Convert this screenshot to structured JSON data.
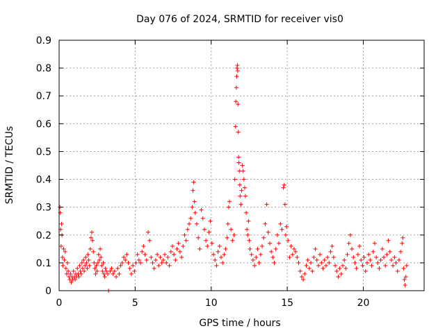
{
  "chart_data": {
    "type": "scatter",
    "title": "Day 076 of 2024, SRMTID for receiver vis0",
    "xlabel": "GPS time / hours",
    "ylabel": "SRMTID / TECUs",
    "xlim": [
      0,
      24
    ],
    "ylim": [
      0,
      0.9
    ],
    "x_ticks": [
      0,
      5,
      10,
      15,
      20
    ],
    "x_tick_labels": [
      "0",
      "5",
      "10",
      "15",
      "20"
    ],
    "y_ticks": [
      0,
      0.1,
      0.2,
      0.3,
      0.4,
      0.5,
      0.6,
      0.7,
      0.8,
      0.9
    ],
    "y_tick_labels": [
      "0",
      "0.1",
      "0.2",
      "0.3",
      "0.4",
      "0.5",
      "0.6",
      "0.7",
      "0.8",
      "0.9"
    ],
    "grid": true,
    "marker": "+",
    "series": [
      {
        "name": "SRMTID",
        "color": "#ff0000",
        "points": [
          [
            0.05,
            0.3
          ],
          [
            0.08,
            0.28
          ],
          [
            0.1,
            0.22
          ],
          [
            0.13,
            0.16
          ],
          [
            0.16,
            0.24
          ],
          [
            0.19,
            0.2
          ],
          [
            0.22,
            0.12
          ],
          [
            0.25,
            0.09
          ],
          [
            0.3,
            0.15
          ],
          [
            0.35,
            0.11
          ],
          [
            0.4,
            0.14
          ],
          [
            0.45,
            0.08
          ],
          [
            0.5,
            0.06
          ],
          [
            0.55,
            0.1
          ],
          [
            0.6,
            0.07
          ],
          [
            0.65,
            0.05
          ],
          [
            0.7,
            0.04
          ],
          [
            0.75,
            0.06
          ],
          [
            0.8,
            0.03
          ],
          [
            0.85,
            0.05
          ],
          [
            0.9,
            0.04
          ],
          [
            0.95,
            0.07
          ],
          [
            1.0,
            0.05
          ],
          [
            1.05,
            0.04
          ],
          [
            1.1,
            0.06
          ],
          [
            1.15,
            0.05
          ],
          [
            1.2,
            0.08
          ],
          [
            1.25,
            0.06
          ],
          [
            1.3,
            0.05
          ],
          [
            1.35,
            0.09
          ],
          [
            1.4,
            0.07
          ],
          [
            1.45,
            0.06
          ],
          [
            1.5,
            0.1
          ],
          [
            1.55,
            0.08
          ],
          [
            1.6,
            0.11
          ],
          [
            1.65,
            0.07
          ],
          [
            1.7,
            0.09
          ],
          [
            1.75,
            0.12
          ],
          [
            1.8,
            0.1
          ],
          [
            1.85,
            0.08
          ],
          [
            1.9,
            0.13
          ],
          [
            1.95,
            0.11
          ],
          [
            2.0,
            0.09
          ],
          [
            2.05,
            0.15
          ],
          [
            2.1,
            0.19
          ],
          [
            2.15,
            0.21
          ],
          [
            2.2,
            0.18
          ],
          [
            2.25,
            0.14
          ],
          [
            2.3,
            0.1
          ],
          [
            2.35,
            0.08
          ],
          [
            2.4,
            0.06
          ],
          [
            2.45,
            0.09
          ],
          [
            2.5,
            0.07
          ],
          [
            2.55,
            0.1
          ],
          [
            2.6,
            0.13
          ],
          [
            2.65,
            0.11
          ],
          [
            2.7,
            0.15
          ],
          [
            2.75,
            0.12
          ],
          [
            2.8,
            0.09
          ],
          [
            2.85,
            0.07
          ],
          [
            2.9,
            0.1
          ],
          [
            2.95,
            0.06
          ],
          [
            3.0,
            0.05
          ],
          [
            3.05,
            0.08
          ],
          [
            3.1,
            0.07
          ],
          [
            3.2,
            0.06
          ],
          [
            3.25,
            0.0
          ],
          [
            3.35,
            0.07
          ],
          [
            3.45,
            0.08
          ],
          [
            3.55,
            0.06
          ],
          [
            3.65,
            0.07
          ],
          [
            3.75,
            0.05
          ],
          [
            3.85,
            0.08
          ],
          [
            3.95,
            0.06
          ],
          [
            4.05,
            0.09
          ],
          [
            4.15,
            0.1
          ],
          [
            4.25,
            0.12
          ],
          [
            4.35,
            0.11
          ],
          [
            4.45,
            0.13
          ],
          [
            4.55,
            0.1
          ],
          [
            4.65,
            0.08
          ],
          [
            4.75,
            0.06
          ],
          [
            4.85,
            0.09
          ],
          [
            4.95,
            0.07
          ],
          [
            5.05,
            0.1
          ],
          [
            5.15,
            0.13
          ],
          [
            5.25,
            0.11
          ],
          [
            5.35,
            0.1
          ],
          [
            5.45,
            0.14
          ],
          [
            5.55,
            0.16
          ],
          [
            5.65,
            0.13
          ],
          [
            5.75,
            0.11
          ],
          [
            5.85,
            0.21
          ],
          [
            5.95,
            0.18
          ],
          [
            6.05,
            0.12
          ],
          [
            6.15,
            0.1
          ],
          [
            6.25,
            0.08
          ],
          [
            6.35,
            0.11
          ],
          [
            6.45,
            0.13
          ],
          [
            6.55,
            0.09
          ],
          [
            6.65,
            0.12
          ],
          [
            6.75,
            0.1
          ],
          [
            6.85,
            0.11
          ],
          [
            6.95,
            0.13
          ],
          [
            7.05,
            0.1
          ],
          [
            7.15,
            0.12
          ],
          [
            7.25,
            0.09
          ],
          [
            7.35,
            0.14
          ],
          [
            7.45,
            0.16
          ],
          [
            7.55,
            0.13
          ],
          [
            7.65,
            0.11
          ],
          [
            7.75,
            0.15
          ],
          [
            7.85,
            0.17
          ],
          [
            7.95,
            0.14
          ],
          [
            8.05,
            0.12
          ],
          [
            8.15,
            0.16
          ],
          [
            8.25,
            0.2
          ],
          [
            8.35,
            0.18
          ],
          [
            8.45,
            0.22
          ],
          [
            8.55,
            0.24
          ],
          [
            8.65,
            0.26
          ],
          [
            8.75,
            0.3
          ],
          [
            8.8,
            0.36
          ],
          [
            8.85,
            0.39
          ],
          [
            8.9,
            0.32
          ],
          [
            8.95,
            0.28
          ],
          [
            9.05,
            0.24
          ],
          [
            9.15,
            0.19
          ],
          [
            9.25,
            0.15
          ],
          [
            9.35,
            0.29
          ],
          [
            9.45,
            0.26
          ],
          [
            9.55,
            0.22
          ],
          [
            9.65,
            0.18
          ],
          [
            9.75,
            0.16
          ],
          [
            9.85,
            0.21
          ],
          [
            9.95,
            0.25
          ],
          [
            10.05,
            0.17
          ],
          [
            10.15,
            0.13
          ],
          [
            10.25,
            0.11
          ],
          [
            10.35,
            0.09
          ],
          [
            10.45,
            0.14
          ],
          [
            10.55,
            0.16
          ],
          [
            10.65,
            0.12
          ],
          [
            10.75,
            0.1
          ],
          [
            10.85,
            0.13
          ],
          [
            10.95,
            0.15
          ],
          [
            11.05,
            0.19
          ],
          [
            11.1,
            0.24
          ],
          [
            11.15,
            0.3
          ],
          [
            11.2,
            0.32
          ],
          [
            11.3,
            0.22
          ],
          [
            11.4,
            0.18
          ],
          [
            11.5,
            0.2
          ],
          [
            11.55,
            0.4
          ],
          [
            11.6,
            0.59
          ],
          [
            11.62,
            0.68
          ],
          [
            11.65,
            0.73
          ],
          [
            11.68,
            0.77
          ],
          [
            11.7,
            0.8
          ],
          [
            11.72,
            0.81
          ],
          [
            11.74,
            0.79
          ],
          [
            11.76,
            0.67
          ],
          [
            11.78,
            0.57
          ],
          [
            11.8,
            0.48
          ],
          [
            11.82,
            0.46
          ],
          [
            11.85,
            0.43
          ],
          [
            11.88,
            0.38
          ],
          [
            11.9,
            0.34
          ],
          [
            11.95,
            0.31
          ],
          [
            12.0,
            0.36
          ],
          [
            12.05,
            0.45
          ],
          [
            12.1,
            0.43
          ],
          [
            12.15,
            0.4
          ],
          [
            12.2,
            0.37
          ],
          [
            12.25,
            0.34
          ],
          [
            12.3,
            0.28
          ],
          [
            12.35,
            0.22
          ],
          [
            12.4,
            0.2
          ],
          [
            12.45,
            0.25
          ],
          [
            12.5,
            0.18
          ],
          [
            12.55,
            0.15
          ],
          [
            12.65,
            0.13
          ],
          [
            12.75,
            0.11
          ],
          [
            12.85,
            0.09
          ],
          [
            12.95,
            0.12
          ],
          [
            13.05,
            0.15
          ],
          [
            13.15,
            0.1
          ],
          [
            13.25,
            0.13
          ],
          [
            13.35,
            0.16
          ],
          [
            13.45,
            0.19
          ],
          [
            13.55,
            0.24
          ],
          [
            13.65,
            0.31
          ],
          [
            13.75,
            0.21
          ],
          [
            13.85,
            0.17
          ],
          [
            13.95,
            0.14
          ],
          [
            14.05,
            0.12
          ],
          [
            14.15,
            0.1
          ],
          [
            14.25,
            0.15
          ],
          [
            14.35,
            0.2
          ],
          [
            14.45,
            0.17
          ],
          [
            14.55,
            0.24
          ],
          [
            14.65,
            0.22
          ],
          [
            14.75,
            0.37
          ],
          [
            14.8,
            0.38
          ],
          [
            14.85,
            0.31
          ],
          [
            14.9,
            0.2
          ],
          [
            14.95,
            0.23
          ],
          [
            15.05,
            0.18
          ],
          [
            15.15,
            0.12
          ],
          [
            15.25,
            0.16
          ],
          [
            15.35,
            0.13
          ],
          [
            15.45,
            0.15
          ],
          [
            15.55,
            0.14
          ],
          [
            15.65,
            0.12
          ],
          [
            15.75,
            0.1
          ],
          [
            15.85,
            0.07
          ],
          [
            15.95,
            0.05
          ],
          [
            16.05,
            0.04
          ],
          [
            16.15,
            0.06
          ],
          [
            16.25,
            0.09
          ],
          [
            16.35,
            0.11
          ],
          [
            16.45,
            0.08
          ],
          [
            16.55,
            0.1
          ],
          [
            16.65,
            0.07
          ],
          [
            16.75,
            0.12
          ],
          [
            16.85,
            0.15
          ],
          [
            16.95,
            0.11
          ],
          [
            17.05,
            0.09
          ],
          [
            17.15,
            0.13
          ],
          [
            17.25,
            0.1
          ],
          [
            17.35,
            0.08
          ],
          [
            17.45,
            0.11
          ],
          [
            17.55,
            0.09
          ],
          [
            17.65,
            0.12
          ],
          [
            17.75,
            0.1
          ],
          [
            17.85,
            0.14
          ],
          [
            17.95,
            0.16
          ],
          [
            18.05,
            0.12
          ],
          [
            18.15,
            0.09
          ],
          [
            18.25,
            0.07
          ],
          [
            18.35,
            0.05
          ],
          [
            18.45,
            0.08
          ],
          [
            18.55,
            0.06
          ],
          [
            18.65,
            0.09
          ],
          [
            18.75,
            0.11
          ],
          [
            18.85,
            0.08
          ],
          [
            18.95,
            0.13
          ],
          [
            19.05,
            0.17
          ],
          [
            19.15,
            0.2
          ],
          [
            19.25,
            0.15
          ],
          [
            19.35,
            0.12
          ],
          [
            19.45,
            0.1
          ],
          [
            19.55,
            0.08
          ],
          [
            19.65,
            0.13
          ],
          [
            19.75,
            0.16
          ],
          [
            19.85,
            0.11
          ],
          [
            19.95,
            0.09
          ],
          [
            20.05,
            0.12
          ],
          [
            20.15,
            0.07
          ],
          [
            20.25,
            0.1
          ],
          [
            20.35,
            0.13
          ],
          [
            20.45,
            0.11
          ],
          [
            20.55,
            0.09
          ],
          [
            20.65,
            0.14
          ],
          [
            20.75,
            0.17
          ],
          [
            20.85,
            0.12
          ],
          [
            20.95,
            0.1
          ],
          [
            21.05,
            0.08
          ],
          [
            21.15,
            0.11
          ],
          [
            21.25,
            0.15
          ],
          [
            21.35,
            0.12
          ],
          [
            21.45,
            0.09
          ],
          [
            21.55,
            0.13
          ],
          [
            21.65,
            0.18
          ],
          [
            21.75,
            0.14
          ],
          [
            21.85,
            0.11
          ],
          [
            21.95,
            0.09
          ],
          [
            22.05,
            0.12
          ],
          [
            22.15,
            0.1
          ],
          [
            22.25,
            0.07
          ],
          [
            22.35,
            0.11
          ],
          [
            22.45,
            0.14
          ],
          [
            22.55,
            0.17
          ],
          [
            22.6,
            0.19
          ],
          [
            22.65,
            0.08
          ],
          [
            22.7,
            0.04
          ],
          [
            22.75,
            0.02
          ],
          [
            22.8,
            0.05
          ],
          [
            22.85,
            0.09
          ]
        ]
      }
    ]
  }
}
